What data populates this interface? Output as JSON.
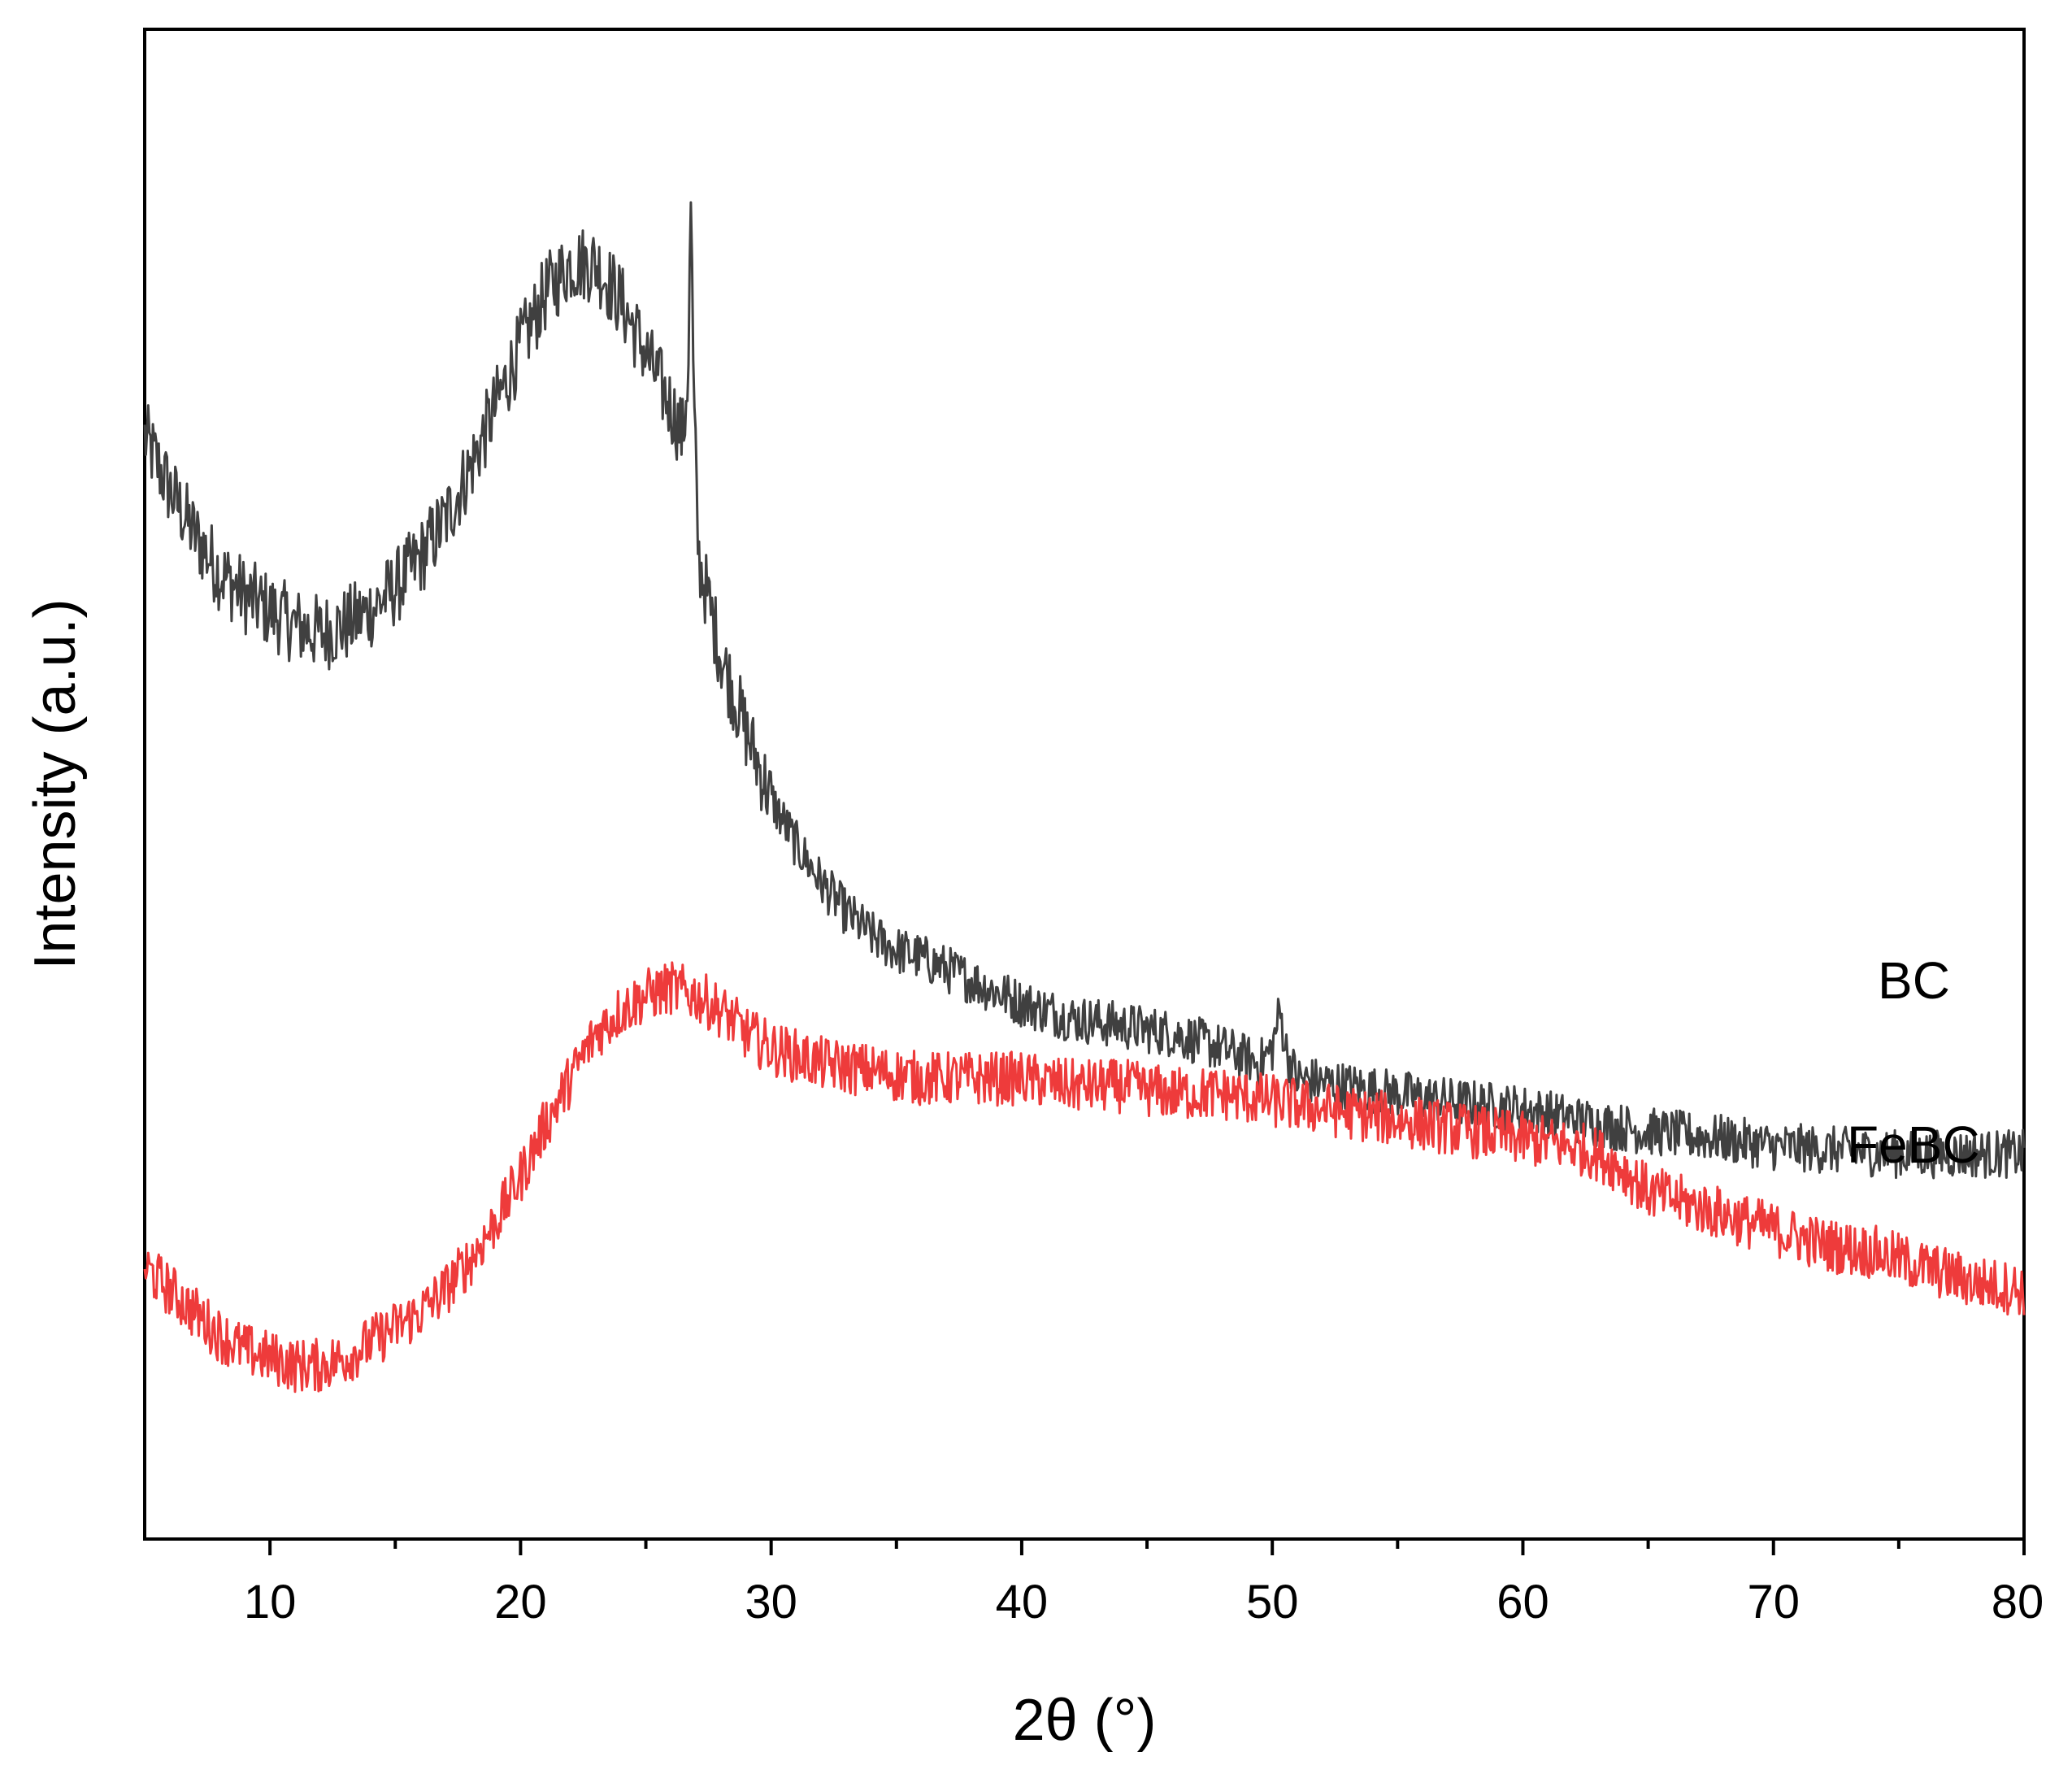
{
  "chart_data": {
    "type": "line",
    "title": "",
    "xlabel": "2θ (°)",
    "ylabel": "Intensity (a.u.)",
    "xlim": [
      5,
      80
    ],
    "ylim": [
      0,
      100
    ],
    "x_major_ticks": [
      10,
      20,
      30,
      40,
      50,
      60,
      70,
      80
    ],
    "x_minor_ticks": [
      15,
      25,
      35,
      45,
      55,
      65,
      75
    ],
    "y_ticks_shown": false,
    "grid": false,
    "legend": "none",
    "series": [
      {
        "name": "BC",
        "color": "#404040",
        "points": [
          [
            5,
            73
          ],
          [
            6,
            69.5
          ],
          [
            7,
            66.5
          ],
          [
            8,
            64
          ],
          [
            9,
            62.5
          ],
          [
            10,
            61.5
          ],
          [
            11,
            60.5
          ],
          [
            12,
            60
          ],
          [
            13,
            60.5
          ],
          [
            14,
            61.5
          ],
          [
            15,
            63
          ],
          [
            16,
            65
          ],
          [
            17,
            67.5
          ],
          [
            18,
            71
          ],
          [
            19,
            75
          ],
          [
            20,
            79
          ],
          [
            21,
            82.5
          ],
          [
            22,
            84.5
          ],
          [
            23,
            84.5
          ],
          [
            24,
            82
          ],
          [
            25,
            78.5
          ],
          [
            26,
            75
          ],
          [
            26.5,
            73
          ],
          [
            26.7,
            78
          ],
          [
            26.8,
            89
          ],
          [
            26.9,
            76
          ],
          [
            27.1,
            65
          ],
          [
            28,
            58.5
          ],
          [
            29,
            53.5
          ],
          [
            30,
            49
          ],
          [
            31,
            46
          ],
          [
            32,
            43.5
          ],
          [
            33,
            41.5
          ],
          [
            34,
            40
          ],
          [
            35,
            39
          ],
          [
            36,
            38.5
          ],
          [
            38,
            37
          ],
          [
            40,
            35.5
          ],
          [
            42,
            34.5
          ],
          [
            44,
            34
          ],
          [
            46,
            33.5
          ],
          [
            48,
            32.5
          ],
          [
            49.5,
            31.5
          ],
          [
            50,
            32.5
          ],
          [
            50.3,
            35
          ],
          [
            50.6,
            32
          ],
          [
            51,
            30.5
          ],
          [
            53,
            30
          ],
          [
            55,
            29.5
          ],
          [
            57,
            29
          ],
          [
            60,
            28.5
          ],
          [
            63,
            27.5
          ],
          [
            65,
            27
          ],
          [
            68,
            26.5
          ],
          [
            70,
            26
          ],
          [
            75,
            25.5
          ],
          [
            80,
            25.5
          ]
        ],
        "label": "BC"
      },
      {
        "name": "FeBC",
        "color": "#ee3b3b",
        "points": [
          [
            5,
            18
          ],
          [
            6,
            16.5
          ],
          [
            7,
            15
          ],
          [
            8,
            13.5
          ],
          [
            9,
            12.5
          ],
          [
            10,
            12
          ],
          [
            11,
            11.5
          ],
          [
            12,
            11.5
          ],
          [
            13,
            12
          ],
          [
            14,
            13
          ],
          [
            15,
            14
          ],
          [
            16,
            15
          ],
          [
            17,
            16.5
          ],
          [
            18,
            18.5
          ],
          [
            19,
            21
          ],
          [
            20,
            24
          ],
          [
            21,
            27.5
          ],
          [
            22,
            30.5
          ],
          [
            23,
            33.5
          ],
          [
            24,
            35
          ],
          [
            25,
            36
          ],
          [
            26,
            36.5
          ],
          [
            27,
            36
          ],
          [
            28,
            35
          ],
          [
            29,
            33.5
          ],
          [
            30,
            32.5
          ],
          [
            32,
            31.5
          ],
          [
            34,
            31
          ],
          [
            36,
            30.5
          ],
          [
            38,
            30.5
          ],
          [
            40,
            30.5
          ],
          [
            42,
            30
          ],
          [
            44,
            30
          ],
          [
            46,
            29.5
          ],
          [
            48,
            29.5
          ],
          [
            50,
            29
          ],
          [
            52,
            28.5
          ],
          [
            54,
            28
          ],
          [
            56,
            27.5
          ],
          [
            58,
            27
          ],
          [
            60,
            26.5
          ],
          [
            62,
            26
          ],
          [
            63,
            25.5
          ],
          [
            64,
            24.5
          ],
          [
            65,
            23
          ],
          [
            66,
            22.5
          ],
          [
            68,
            21.5
          ],
          [
            70,
            20.5
          ],
          [
            72,
            19.5
          ],
          [
            74,
            19
          ],
          [
            76,
            18
          ],
          [
            78,
            17
          ],
          [
            80,
            16.5
          ]
        ],
        "label": "FeBC"
      }
    ]
  }
}
